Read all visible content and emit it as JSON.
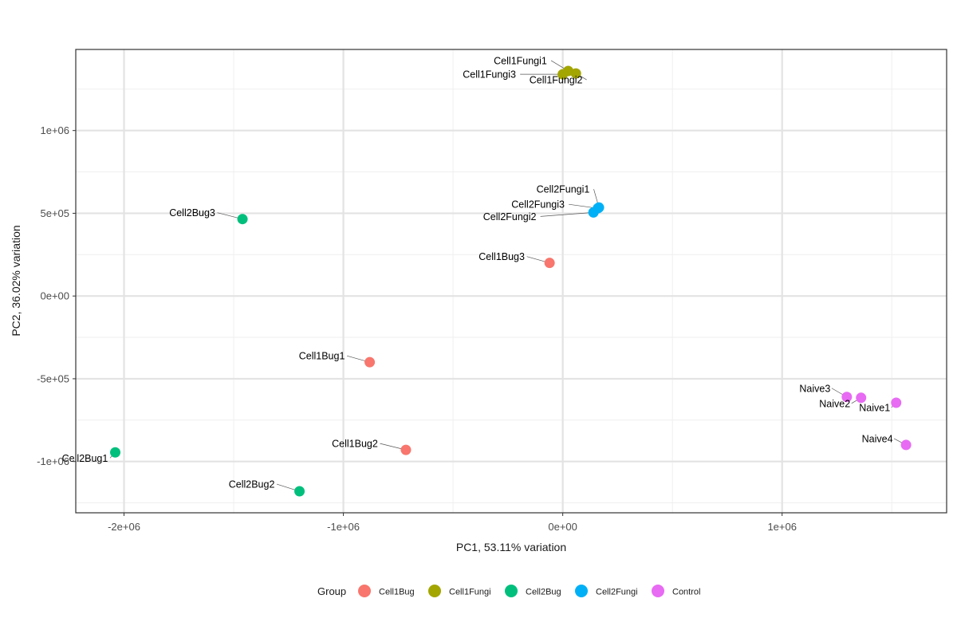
{
  "chart_data": {
    "type": "scatter",
    "xlabel": "PC1, 53.11% variation",
    "ylabel": "PC2, 36.02% variation",
    "xlim": [
      -2220000,
      1750000
    ],
    "ylim": [
      -1310000,
      1490000
    ],
    "x_ticks": [
      {
        "value": -2000000,
        "label": "-2e+06"
      },
      {
        "value": -1000000,
        "label": "-1e+06"
      },
      {
        "value": 0,
        "label": "0e+00"
      },
      {
        "value": 1000000,
        "label": "1e+06"
      }
    ],
    "y_ticks": [
      {
        "value": -1000000,
        "label": "-1e+06"
      },
      {
        "value": -500000,
        "label": "-5e+05"
      },
      {
        "value": 0,
        "label": "0e+00"
      },
      {
        "value": 500000,
        "label": "5e+05"
      },
      {
        "value": 1000000,
        "label": "1e+06"
      }
    ],
    "grid": true,
    "legend_position": "bottom",
    "legend_title": "Group",
    "series": [
      {
        "name": "Cell1Bug",
        "color": "#F8766D",
        "points": [
          {
            "label": "Cell1Bug1",
            "x": -880000,
            "y": -400000
          },
          {
            "label": "Cell1Bug2",
            "x": -715000,
            "y": -930000
          },
          {
            "label": "Cell1Bug3",
            "x": -60000,
            "y": 200000
          }
        ]
      },
      {
        "name": "Cell1Fungi",
        "color": "#A3A500",
        "points": [
          {
            "label": "Cell1Fungi1",
            "x": 25000,
            "y": 1360000
          },
          {
            "label": "Cell1Fungi2",
            "x": 60000,
            "y": 1345000
          },
          {
            "label": "Cell1Fungi3",
            "x": 0,
            "y": 1340000
          }
        ]
      },
      {
        "name": "Cell2Bug",
        "color": "#00BF7D",
        "points": [
          {
            "label": "Cell2Bug1",
            "x": -2040000,
            "y": -945000
          },
          {
            "label": "Cell2Bug2",
            "x": -1200000,
            "y": -1180000
          },
          {
            "label": "Cell2Bug3",
            "x": -1460000,
            "y": 465000
          }
        ]
      },
      {
        "name": "Cell2Fungi",
        "color": "#00B0F6",
        "points": [
          {
            "label": "Cell2Fungi1",
            "x": 165000,
            "y": 535000
          },
          {
            "label": "Cell2Fungi2",
            "x": 140000,
            "y": 505000
          },
          {
            "label": "Cell2Fungi3",
            "x": 160000,
            "y": 530000
          }
        ]
      },
      {
        "name": "Control",
        "color": "#E76BF3",
        "points": [
          {
            "label": "Naive1",
            "x": 1520000,
            "y": -645000
          },
          {
            "label": "Naive2",
            "x": 1360000,
            "y": -615000
          },
          {
            "label": "Naive3",
            "x": 1295000,
            "y": -610000
          },
          {
            "label": "Naive4",
            "x": 1565000,
            "y": -900000
          }
        ]
      }
    ]
  }
}
